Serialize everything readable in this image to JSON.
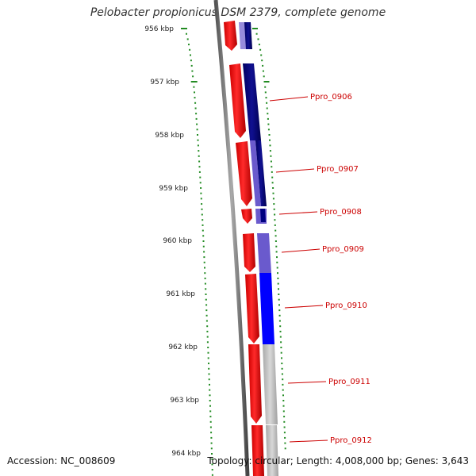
{
  "title": "Pelobacter propionicus DSM 2379, complete genome",
  "accession": "Accession: NC_008609",
  "topology": "Topology: circular; Length: 4,008,000 bp; Genes: 3,643",
  "ruler": {
    "unit_color": "#228b22",
    "ticks": [
      "956 kbp",
      "957 kbp",
      "958 kbp",
      "959 kbp",
      "960 kbp",
      "961 kbp",
      "962 kbp",
      "963 kbp",
      "964 kbp"
    ]
  },
  "genes": [
    {
      "label": "Ppro_0906",
      "color": "#cc0000"
    },
    {
      "label": "Ppro_0907",
      "color": "#cc0000"
    },
    {
      "label": "Ppro_0908",
      "color": "#cc0000"
    },
    {
      "label": "Ppro_0909",
      "color": "#cc0000"
    },
    {
      "label": "Ppro_0910",
      "color": "#cc0000"
    },
    {
      "label": "Ppro_0911",
      "color": "#cc0000"
    },
    {
      "label": "Ppro_0912",
      "color": "#cc0000"
    }
  ],
  "colors": {
    "backbone": "#777777",
    "forward_strand": "#ff0000",
    "cog_navy": "#000080",
    "cog_slate": "#6a5acd",
    "cog_blue": "#0000ff",
    "cog_gray": "#bbbbbb"
  }
}
